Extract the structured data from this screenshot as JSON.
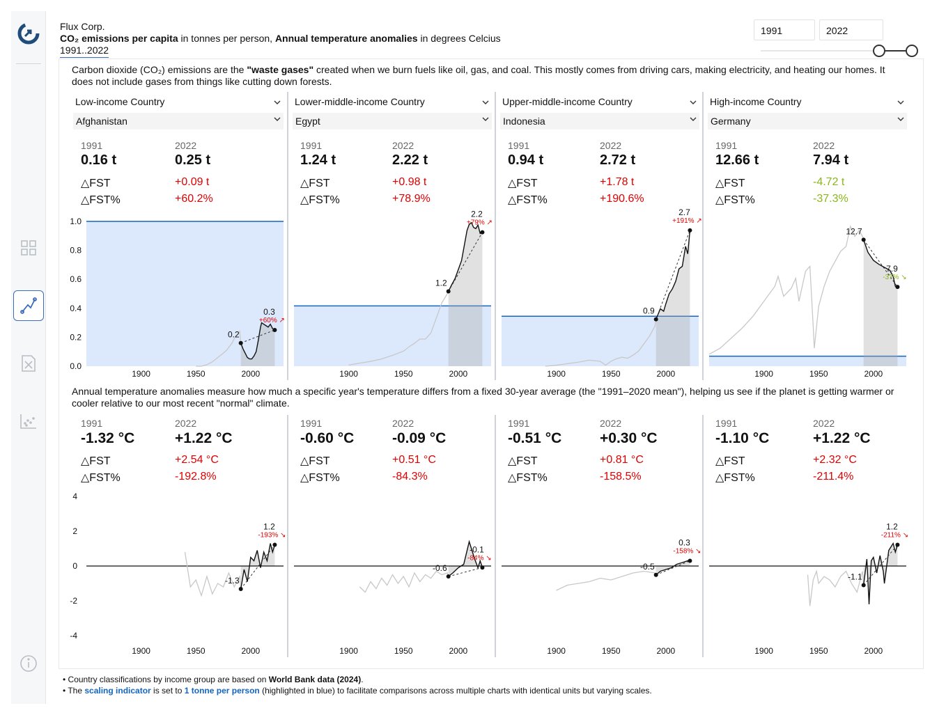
{
  "header": {
    "company": "Flux Corp.",
    "title_co2_bold": "CO₂ emissions per capita",
    "title_co2_rest": " in tonnes per person, ",
    "title_temp_bold": "Annual temperature anomalies",
    "title_temp_rest": " in degrees Celcius",
    "range": "1991..2022"
  },
  "filters": {
    "year_from": "1991",
    "year_to": "2022"
  },
  "sidebar": {
    "icons": [
      "logo-icon",
      "dashboard-icon",
      "line-chart-icon",
      "report-icon",
      "scatter-icon",
      "info-icon"
    ]
  },
  "co2_description": {
    "part1": "Carbon dioxide (CO₂) emissions are the ",
    "bold": "\"waste gases\"",
    "part2": " created when we burn fuels like oil, gas, and coal. This mostly comes from driving cars, making electricity, and heating our homes. It does not include gases from things like cutting down forests."
  },
  "temp_description": "Annual temperature anomalies measure how much a specific year's temperature differs from a fixed 30-year average (the \"1991–2020 mean\"), helping us see if the planet is getting warmer or cooler relative to our most recent \"normal\" climate.",
  "labels": {
    "delta": "△FST",
    "delta_pct": "△FST%"
  },
  "colors": {
    "accent_blue": "#1565c0",
    "highlight_fill": "#dce8fb",
    "negative": "#e00000",
    "positive": "#8ab619",
    "history_line": "#c8c8c8"
  },
  "columns": [
    {
      "group": "Low-income Country",
      "country": "Afghanistan",
      "co2": {
        "y1": "1991",
        "y2": "2022",
        "v1": "0.16 t",
        "v2": "0.25 t",
        "d": "+0.09 t",
        "dp": "+60.2%",
        "trend": "up"
      },
      "temp": {
        "y1": "1991",
        "y2": "2022",
        "v1": "-1.32 °C",
        "v2": "+1.22 °C",
        "d": "+2.54 °C",
        "dp": "-192.8%"
      }
    },
    {
      "group": "Lower-middle-income Country",
      "country": "Egypt",
      "co2": {
        "y1": "1991",
        "y2": "2022",
        "v1": "1.24 t",
        "v2": "2.22 t",
        "d": "+0.98 t",
        "dp": "+78.9%",
        "trend": "up"
      },
      "temp": {
        "y1": "1991",
        "y2": "2022",
        "v1": "-0.60 °C",
        "v2": "-0.09 °C",
        "d": "+0.51 °C",
        "dp": "-84.3%"
      }
    },
    {
      "group": "Upper-middle-income Country",
      "country": "Indonesia",
      "co2": {
        "y1": "1991",
        "y2": "2022",
        "v1": "0.94 t",
        "v2": "2.72 t",
        "d": "+1.78 t",
        "dp": "+190.6%",
        "trend": "up"
      },
      "temp": {
        "y1": "1991",
        "y2": "2022",
        "v1": "-0.51 °C",
        "v2": "+0.30 °C",
        "d": "+0.81 °C",
        "dp": "-158.5%"
      }
    },
    {
      "group": "High-income Country",
      "country": "Germany",
      "co2": {
        "y1": "1991",
        "y2": "2022",
        "v1": "12.66 t",
        "v2": "7.94 t",
        "d": "-4.72 t",
        "dp": "-37.3%",
        "trend": "down"
      },
      "temp": {
        "y1": "1991",
        "y2": "2022",
        "v1": "-1.10 °C",
        "v2": "+1.22 °C",
        "d": "+2.32 °C",
        "dp": "-211.4%"
      }
    }
  ],
  "chart_data": [
    {
      "type": "line",
      "country": "Afghanistan",
      "metric": "co2",
      "ylim": [
        0,
        1.0
      ],
      "yticks": [
        "0.0",
        "0.2",
        "0.4",
        "0.6",
        "0.8",
        "1.0"
      ],
      "xticks": [
        "1900",
        "1950",
        "2000"
      ],
      "scaling_indicator": 1.0,
      "start_label": "0.2",
      "end_label": "0.3",
      "change_label": "+60% ↗",
      "x": [
        1950,
        1955,
        1960,
        1965,
        1970,
        1975,
        1978,
        1980,
        1983,
        1985,
        1988,
        1990,
        1991,
        1993,
        1995,
        1997,
        1999,
        2001,
        2003,
        2005,
        2007,
        2009,
        2010,
        2012,
        2014,
        2016,
        2018,
        2020,
        2022
      ],
      "y": [
        0.0,
        0.0,
        0.01,
        0.03,
        0.06,
        0.09,
        0.11,
        0.13,
        0.16,
        0.19,
        0.22,
        0.24,
        0.16,
        0.12,
        0.09,
        0.06,
        0.05,
        0.05,
        0.07,
        0.1,
        0.18,
        0.27,
        0.3,
        0.29,
        0.28,
        0.27,
        0.29,
        0.26,
        0.25
      ]
    },
    {
      "type": "line",
      "country": "Egypt",
      "metric": "co2",
      "ylim": [
        0,
        2.4
      ],
      "xticks": [
        "1900",
        "1950",
        "2000"
      ],
      "scaling_indicator": 1.0,
      "start_label": "1.2",
      "end_label": "2.2",
      "change_label": "+79% ↗",
      "x": [
        1900,
        1910,
        1920,
        1930,
        1940,
        1950,
        1955,
        1960,
        1965,
        1970,
        1975,
        1980,
        1985,
        1990,
        1991,
        1994,
        1997,
        2000,
        2003,
        2006,
        2008,
        2010,
        2012,
        2014,
        2016,
        2018,
        2020,
        2022
      ],
      "y": [
        0.02,
        0.05,
        0.08,
        0.12,
        0.18,
        0.25,
        0.32,
        0.38,
        0.45,
        0.45,
        0.55,
        0.8,
        1.05,
        1.2,
        1.24,
        1.35,
        1.45,
        1.6,
        1.75,
        2.05,
        2.25,
        2.35,
        2.38,
        2.3,
        2.28,
        2.34,
        2.2,
        2.22
      ]
    },
    {
      "type": "line",
      "country": "Indonesia",
      "metric": "co2",
      "ylim": [
        0,
        2.9
      ],
      "xticks": [
        "1900",
        "1950",
        "2000"
      ],
      "scaling_indicator": 1.0,
      "start_label": "0.9",
      "end_label": "2.7",
      "change_label": "+191% ↗",
      "x": [
        1890,
        1900,
        1910,
        1920,
        1930,
        1940,
        1945,
        1950,
        1955,
        1960,
        1965,
        1970,
        1975,
        1980,
        1985,
        1990,
        1991,
        1995,
        1998,
        2000,
        2003,
        2006,
        2009,
        2012,
        2015,
        2018,
        2020,
        2022
      ],
      "y": [
        0.0,
        0.02,
        0.05,
        0.08,
        0.12,
        0.1,
        0.02,
        0.1,
        0.15,
        0.18,
        0.16,
        0.22,
        0.3,
        0.45,
        0.6,
        0.8,
        0.94,
        1.15,
        1.1,
        1.25,
        1.45,
        1.55,
        1.7,
        1.95,
        2.0,
        2.4,
        2.25,
        2.72
      ]
    },
    {
      "type": "line",
      "country": "Germany",
      "metric": "co2",
      "ylim": [
        0,
        14.5
      ],
      "xticks": [
        "1900",
        "1950",
        "2000"
      ],
      "scaling_indicator": 1.0,
      "start_label": "12.7",
      "end_label": "7.9",
      "change_label": "-37% ↘",
      "x": [
        1850,
        1860,
        1870,
        1880,
        1890,
        1900,
        1910,
        1913,
        1918,
        1925,
        1929,
        1932,
        1938,
        1942,
        1945,
        1946,
        1950,
        1955,
        1960,
        1965,
        1970,
        1975,
        1979,
        1983,
        1987,
        1990,
        1991,
        1995,
        2000,
        2005,
        2010,
        2015,
        2018,
        2020,
        2022
      ],
      "y": [
        1.2,
        1.8,
        2.8,
        3.8,
        5.0,
        6.5,
        8.0,
        9.0,
        7.0,
        7.8,
        8.8,
        6.5,
        9.5,
        10.0,
        4.0,
        1.8,
        6.0,
        8.0,
        9.5,
        10.5,
        11.5,
        12.0,
        14.0,
        13.0,
        13.6,
        13.0,
        12.66,
        11.4,
        10.6,
        10.2,
        9.9,
        9.6,
        9.0,
        8.0,
        7.94
      ]
    },
    {
      "type": "line",
      "country": "Afghanistan",
      "metric": "temperature",
      "ylim": [
        -4,
        4
      ],
      "yticks": [
        "-4",
        "-2",
        "0",
        "2",
        "4"
      ],
      "xticks": [
        "1900",
        "1950",
        "2000"
      ],
      "start_label": "-1.3",
      "end_label": "1.2",
      "change_label": "-193% ↘",
      "x": [
        1940,
        1945,
        1950,
        1955,
        1960,
        1965,
        1970,
        1975,
        1980,
        1985,
        1990,
        1991,
        1994,
        1997,
        2000,
        2003,
        2006,
        2009,
        2012,
        2015,
        2018,
        2020,
        2022
      ],
      "y": [
        0.8,
        -1.2,
        -0.8,
        -1.7,
        -0.6,
        -1.6,
        -1.0,
        -1.2,
        -0.4,
        -1.2,
        -0.6,
        -1.32,
        -0.2,
        -0.9,
        0.5,
        0.3,
        0.9,
        -0.1,
        0.8,
        0.3,
        1.3,
        0.8,
        1.22
      ]
    },
    {
      "type": "line",
      "country": "Egypt",
      "metric": "temperature",
      "ylim": [
        -4,
        4
      ],
      "xticks": [
        "1900",
        "1950",
        "2000"
      ],
      "start_label": "-0.6",
      "end_label": "-0.1",
      "change_label": "-84% ↘",
      "x": [
        1910,
        1915,
        1920,
        1925,
        1930,
        1935,
        1940,
        1945,
        1950,
        1955,
        1960,
        1965,
        1970,
        1975,
        1980,
        1985,
        1990,
        1991,
        1995,
        2000,
        2005,
        2010,
        2015,
        2018,
        2020,
        2022
      ],
      "y": [
        -1.2,
        -1.5,
        -0.9,
        -1.3,
        -0.7,
        -1.1,
        -0.5,
        -1.0,
        -0.6,
        -1.2,
        -0.4,
        -0.9,
        -0.5,
        -0.7,
        -0.3,
        -0.5,
        -0.4,
        -0.6,
        -0.4,
        -0.1,
        0.1,
        1.4,
        0.4,
        -0.1,
        0.3,
        -0.09
      ]
    },
    {
      "type": "line",
      "country": "Indonesia",
      "metric": "temperature",
      "ylim": [
        -4,
        4
      ],
      "xticks": [
        "1900",
        "1950",
        "2000"
      ],
      "start_label": "-0.5",
      "end_label": "0.3",
      "change_label": "-158% ↘",
      "x": [
        1900,
        1910,
        1920,
        1930,
        1940,
        1950,
        1960,
        1970,
        1980,
        1990,
        1991,
        1995,
        2000,
        2005,
        2010,
        2015,
        2020,
        2022
      ],
      "y": [
        -1.4,
        -1.1,
        -1.0,
        -0.9,
        -0.7,
        -0.8,
        -0.6,
        -0.4,
        -0.3,
        -0.4,
        -0.51,
        -0.3,
        -0.2,
        -0.1,
        0.1,
        0.2,
        0.3,
        0.3
      ]
    },
    {
      "type": "line",
      "country": "Germany",
      "metric": "temperature",
      "ylim": [
        -4,
        4
      ],
      "xticks": [
        "1900",
        "1950",
        "2000"
      ],
      "start_label": "-1.1",
      "end_label": "1.2",
      "change_label": "-211% ↘",
      "x": [
        1940,
        1942,
        1945,
        1948,
        1950,
        1955,
        1960,
        1965,
        1970,
        1975,
        1980,
        1985,
        1990,
        1991,
        1994,
        1996,
        1998,
        2000,
        2003,
        2006,
        2009,
        2010,
        2014,
        2018,
        2020,
        2022
      ],
      "y": [
        -0.5,
        -2.3,
        -0.8,
        -0.3,
        -1.0,
        -0.6,
        -0.8,
        -1.2,
        -0.6,
        -0.3,
        -1.0,
        -1.5,
        -0.3,
        -1.1,
        0.4,
        -2.2,
        0.3,
        0.5,
        -0.4,
        0.6,
        -0.3,
        -1.0,
        0.9,
        1.3,
        0.8,
        1.22
      ]
    }
  ],
  "footnotes": {
    "n1_pre": "Country classifications by income group are based on ",
    "n1_bold": "World Bank data (2024)",
    "n1_post": ".",
    "n2_pre": "The ",
    "n2_link": "scaling indicator",
    "n2_mid": " is set to ",
    "n2_unit": "1 tonne per person",
    "n2_post": " (highlighted in blue) to facilitate comparisons across multiple charts with identical units but varying scales."
  }
}
